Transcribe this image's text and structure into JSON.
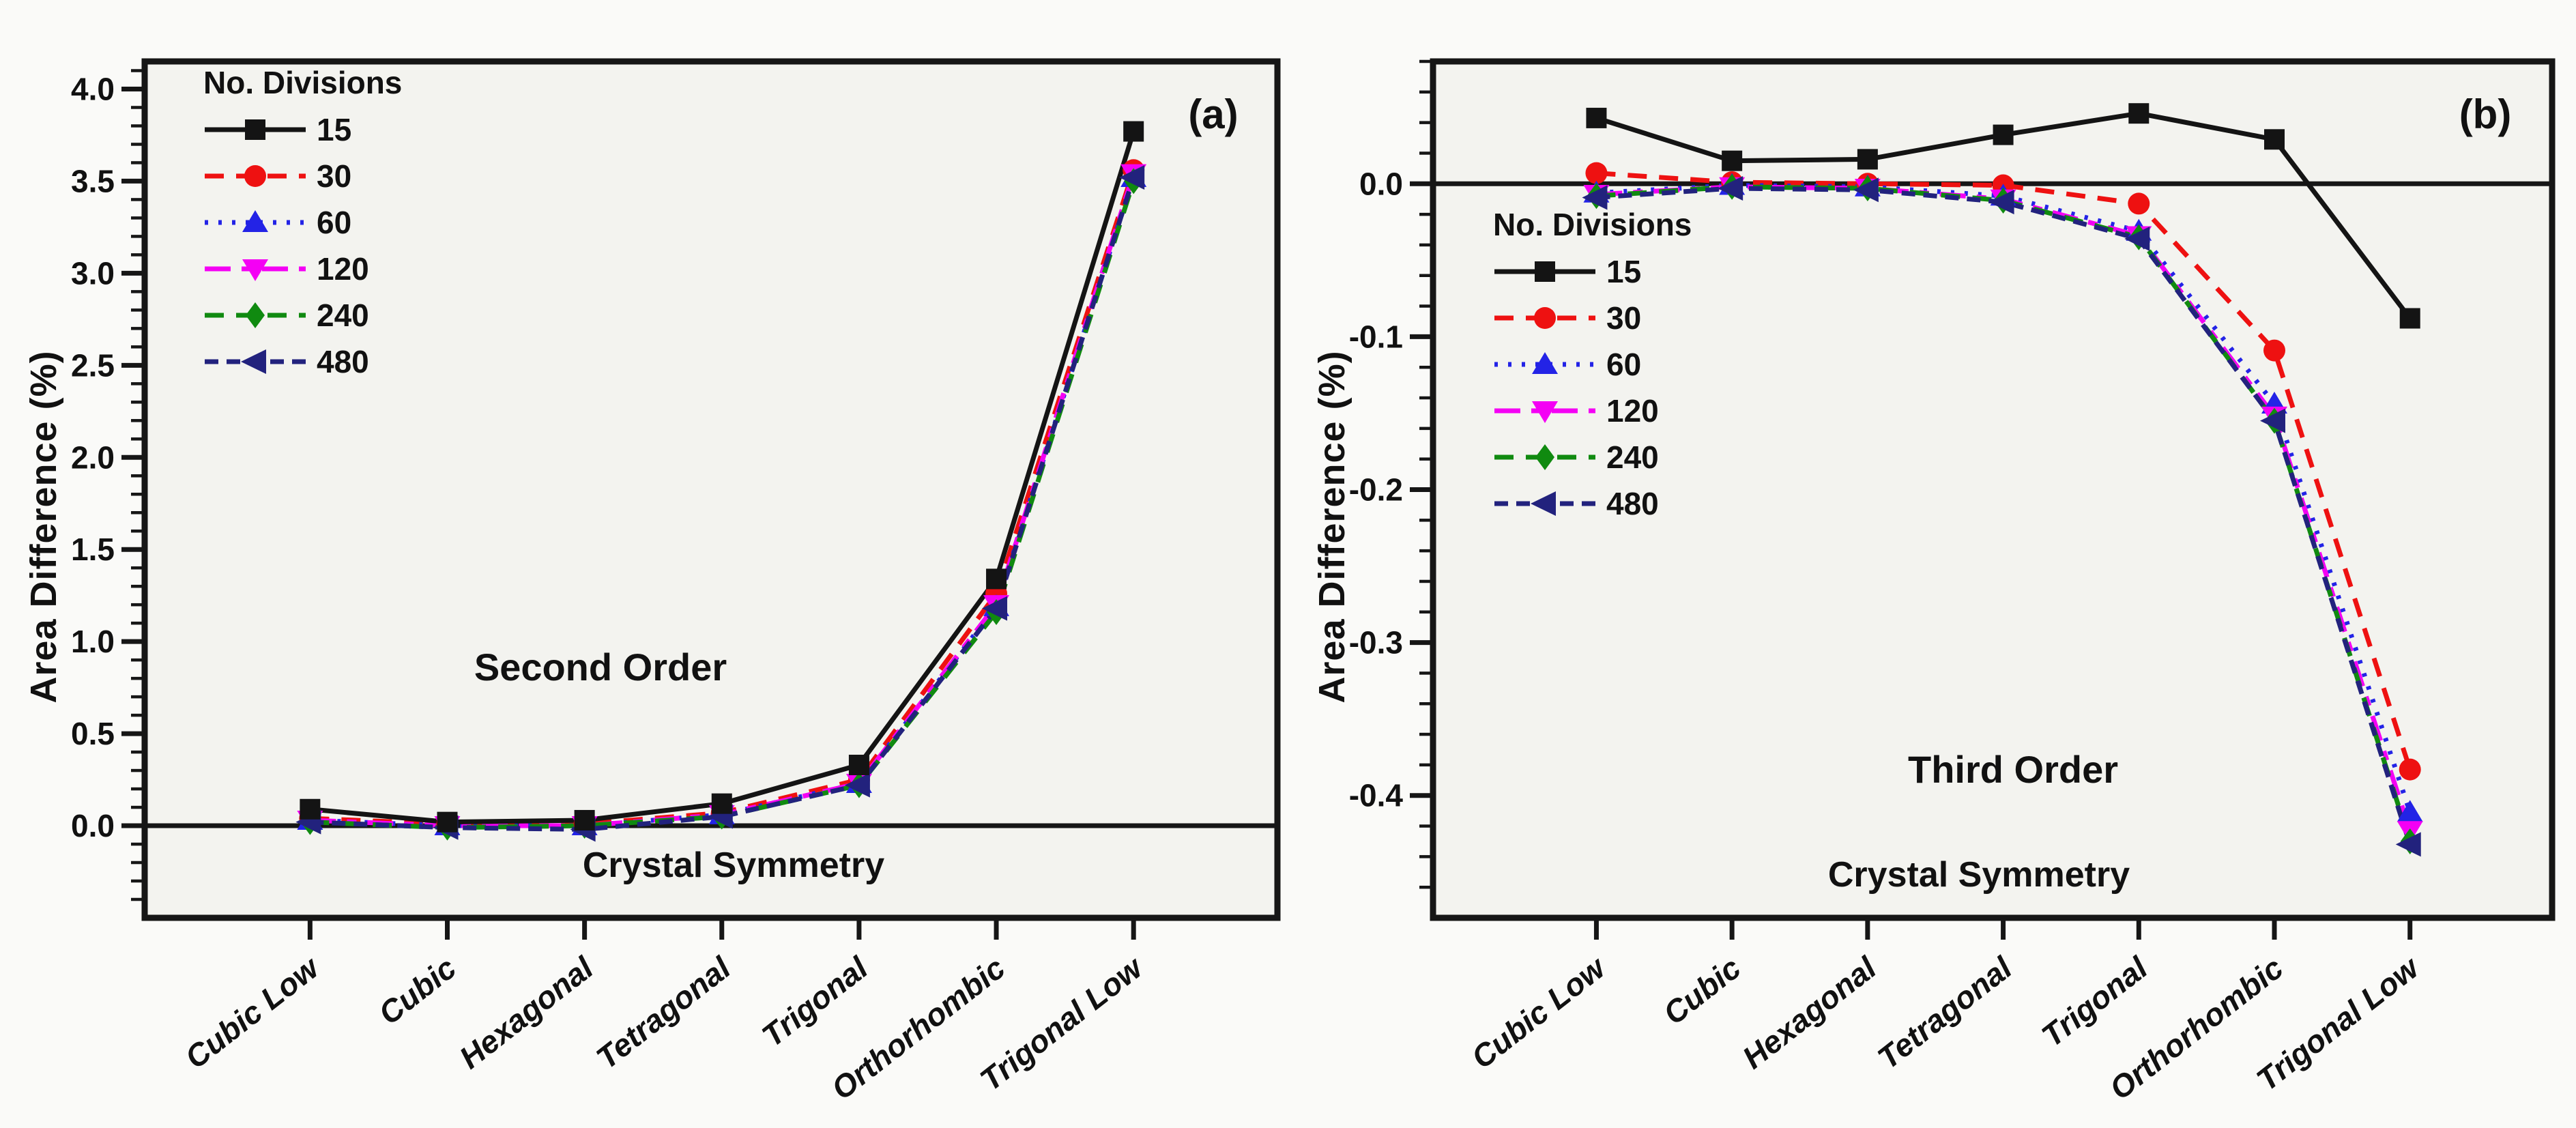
{
  "figure_caption_tags": [
    "(a)",
    "(b)"
  ],
  "chart_data": [
    {
      "type": "line",
      "tag": "(a)",
      "title": "Second Order",
      "xlabel": "Crystal Symmetry",
      "ylabel": "Area Difference (%)",
      "legend_title": "No. Divisions",
      "legend_position": "upper-left-inside",
      "categories": [
        "Cubic Low",
        "Cubic",
        "Hexagonal",
        "Tetragonal",
        "Trigonal",
        "Orthorhombic",
        "Trigonal Low"
      ],
      "ylim": [
        -0.5,
        4.15
      ],
      "yticks": [
        4.0,
        3.5,
        3.0,
        2.5,
        2.0,
        1.5,
        1.0,
        0.5,
        0.0
      ],
      "ytick_labels": [
        "4.0",
        "3.5",
        "3.0",
        "2.5",
        "2.0",
        "1.5",
        "1.0",
        "0.5",
        "0.0"
      ],
      "minor_tick_step": 0.1,
      "zero_line": true,
      "grid": false,
      "series": [
        {
          "name": "15",
          "color": "#141414",
          "marker": "square",
          "line": "solid",
          "values": [
            0.09,
            0.02,
            0.03,
            0.12,
            0.33,
            1.34,
            3.77
          ]
        },
        {
          "name": "30",
          "color": "#ee1111",
          "marker": "circle",
          "line": "dashed",
          "values": [
            0.04,
            0.01,
            0.01,
            0.07,
            0.25,
            1.26,
            3.56
          ]
        },
        {
          "name": "60",
          "color": "#2323e6",
          "marker": "triangle-up",
          "line": "dotted",
          "values": [
            0.03,
            0.0,
            0.0,
            0.06,
            0.23,
            1.19,
            3.52
          ]
        },
        {
          "name": "120",
          "color": "#f400f4",
          "marker": "triangle-down",
          "line": "long-dash",
          "values": [
            0.03,
            0.0,
            0.0,
            0.06,
            0.23,
            1.2,
            3.54
          ]
        },
        {
          "name": "240",
          "color": "#108a10",
          "marker": "diamond",
          "line": "dashed",
          "values": [
            0.02,
            -0.01,
            0.0,
            0.05,
            0.22,
            1.16,
            3.5
          ]
        },
        {
          "name": "480",
          "color": "#22227d",
          "marker": "triangle-left",
          "line": "dash-dot",
          "values": [
            0.02,
            -0.01,
            -0.02,
            0.05,
            0.22,
            1.18,
            3.52
          ]
        }
      ]
    },
    {
      "type": "line",
      "tag": "(b)",
      "title": "Third Order",
      "xlabel": "Crystal Symmetry",
      "ylabel": "Area Difference (%)",
      "legend_title": "No. Divisions",
      "legend_position": "mid-left-inside",
      "categories": [
        "Cubic Low",
        "Cubic",
        "Hexagonal",
        "Tetragonal",
        "Trigonal",
        "Orthorhombic",
        "Trigonal Low"
      ],
      "ylim": [
        -0.48,
        0.08
      ],
      "yticks": [
        0.0,
        -0.1,
        -0.2,
        -0.3,
        -0.4
      ],
      "ytick_labels": [
        "0.0",
        "-0.1",
        "-0.2",
        "-0.3",
        "-0.4"
      ],
      "minor_tick_step": 0.02,
      "zero_line": true,
      "grid": false,
      "series": [
        {
          "name": "15",
          "color": "#141414",
          "marker": "square",
          "line": "solid",
          "values": [
            0.043,
            0.015,
            0.016,
            0.032,
            0.046,
            0.029,
            -0.088
          ]
        },
        {
          "name": "30",
          "color": "#ee1111",
          "marker": "circle",
          "line": "dashed",
          "values": [
            0.007,
            0.001,
            0.0,
            -0.001,
            -0.013,
            -0.109,
            -0.383
          ]
        },
        {
          "name": "60",
          "color": "#2323e6",
          "marker": "triangle-up",
          "line": "dotted",
          "values": [
            -0.006,
            -0.001,
            -0.002,
            -0.008,
            -0.031,
            -0.144,
            -0.411
          ]
        },
        {
          "name": "120",
          "color": "#f400f4",
          "marker": "triangle-down",
          "line": "long-dash",
          "values": [
            -0.007,
            -0.002,
            -0.003,
            -0.01,
            -0.034,
            -0.152,
            -0.423
          ]
        },
        {
          "name": "240",
          "color": "#108a10",
          "marker": "diamond",
          "line": "dashed",
          "values": [
            -0.008,
            -0.002,
            -0.003,
            -0.011,
            -0.035,
            -0.155,
            -0.43
          ]
        },
        {
          "name": "480",
          "color": "#22227d",
          "marker": "triangle-left",
          "line": "dash-dot",
          "values": [
            -0.009,
            -0.003,
            -0.004,
            -0.012,
            -0.036,
            -0.155,
            -0.432
          ]
        }
      ]
    }
  ],
  "style_colors": {
    "axis": "#161616",
    "plot_background": "#f3f3ef",
    "page_background": "#fafaf8"
  }
}
